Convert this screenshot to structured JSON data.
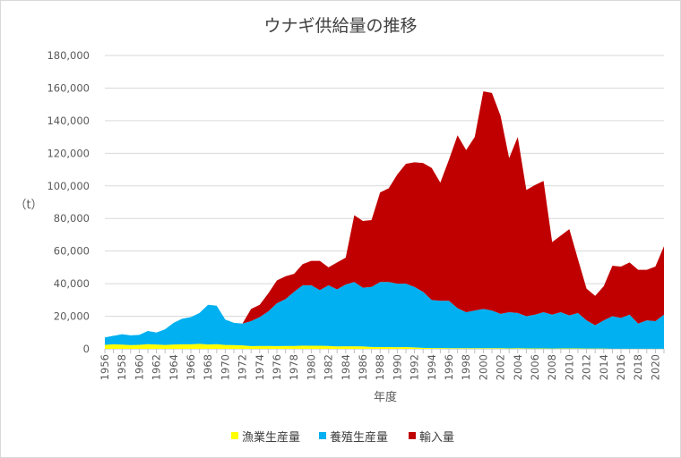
{
  "chart_data": {
    "type": "area",
    "stacked": true,
    "title": "ウナギ供給量の推移",
    "xlabel": "年度",
    "ylabel": "（t）",
    "ylim": [
      0,
      180000
    ],
    "yticks": [
      0,
      20000,
      40000,
      60000,
      80000,
      100000,
      120000,
      140000,
      160000,
      180000
    ],
    "ytick_labels": [
      "0",
      "20,000",
      "40,000",
      "60,000",
      "80,000",
      "100,000",
      "120,000",
      "140,000",
      "160,000",
      "180,000"
    ],
    "grid": true,
    "legend_position": "bottom",
    "x": [
      1956,
      1957,
      1958,
      1959,
      1960,
      1961,
      1962,
      1963,
      1964,
      1965,
      1966,
      1967,
      1968,
      1969,
      1970,
      1971,
      1972,
      1973,
      1974,
      1975,
      1976,
      1977,
      1978,
      1979,
      1980,
      1981,
      1982,
      1983,
      1984,
      1985,
      1986,
      1987,
      1988,
      1989,
      1990,
      1991,
      1992,
      1993,
      1994,
      1995,
      1996,
      1997,
      1998,
      1999,
      2000,
      2001,
      2002,
      2003,
      2004,
      2005,
      2006,
      2007,
      2008,
      2009,
      2010,
      2011,
      2012,
      2013,
      2014,
      2015,
      2016,
      2017,
      2018,
      2019,
      2020,
      2021
    ],
    "series": [
      {
        "name": "漁業生産量",
        "color": "#ffff00",
        "values": [
          2500,
          2800,
          2600,
          2300,
          2500,
          2900,
          2700,
          2400,
          2700,
          2800,
          2800,
          3100,
          2700,
          2900,
          2400,
          2300,
          2100,
          1700,
          1800,
          1800,
          1700,
          1800,
          1800,
          2000,
          1900,
          1900,
          1800,
          1500,
          1600,
          1600,
          1500,
          1200,
          1100,
          1100,
          1000,
          1100,
          900,
          600,
          500,
          500,
          400,
          400,
          400,
          400,
          400,
          400,
          400,
          300,
          400,
          300,
          300,
          300,
          200,
          300,
          300,
          300,
          200,
          200,
          200,
          100,
          100,
          100,
          100,
          100,
          100,
          100
        ]
      },
      {
        "name": "養殖生産量",
        "color": "#00b0f0",
        "values": [
          4500,
          5200,
          6400,
          6000,
          6100,
          8100,
          7300,
          9600,
          13300,
          15700,
          16700,
          18900,
          24300,
          23600,
          15600,
          13700,
          13400,
          15300,
          17700,
          21200,
          26300,
          28700,
          33200,
          37000,
          37100,
          34100,
          37200,
          35000,
          37900,
          39400,
          36000,
          36800,
          39900,
          39900,
          39000,
          38900,
          37100,
          34400,
          29500,
          29000,
          29100,
          24600,
          22100,
          23100,
          24100,
          23100,
          21100,
          22200,
          21600,
          19700,
          20700,
          22200,
          20800,
          22200,
          20200,
          21700,
          17300,
          14300,
          17300,
          19900,
          18900,
          20900,
          15400,
          17400,
          16900,
          20900
        ]
      },
      {
        "name": "輸入量",
        "color": "#c00000",
        "values": [
          0,
          0,
          0,
          0,
          0,
          0,
          0,
          0,
          0,
          0,
          0,
          0,
          0,
          0,
          0,
          0,
          0,
          7500,
          7500,
          11000,
          14000,
          14000,
          11000,
          13000,
          15000,
          18000,
          11000,
          16500,
          16500,
          41000,
          41000,
          41000,
          55000,
          57500,
          67000,
          73500,
          76500,
          79000,
          81000,
          72500,
          86500,
          106000,
          99500,
          106500,
          133500,
          133500,
          121500,
          94500,
          108000,
          77500,
          79500,
          80500,
          44500,
          47000,
          53000,
          33000,
          19500,
          18000,
          21000,
          31000,
          31500,
          32000,
          33000,
          31000,
          33500,
          42000
        ]
      }
    ]
  }
}
